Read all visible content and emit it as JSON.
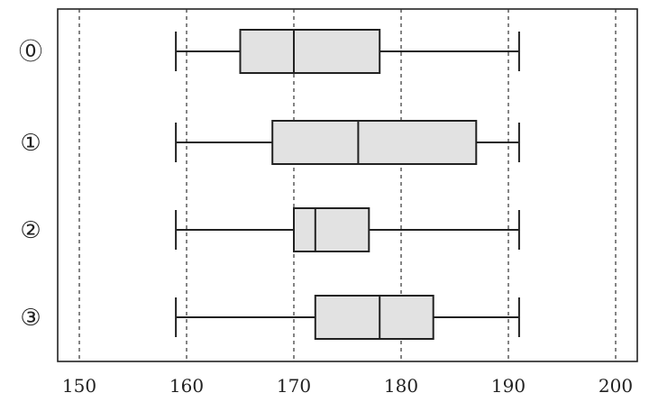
{
  "chart_data": {
    "type": "box",
    "orientation": "horizontal",
    "title": "",
    "xlabel": "",
    "ylabel": "",
    "xlim": [
      150,
      200
    ],
    "xticks": [
      150,
      160,
      170,
      180,
      190,
      200
    ],
    "grid": "vertical dashed",
    "categories": [
      "⓪",
      "①",
      "②",
      "③"
    ],
    "series": [
      {
        "label": "⓪",
        "min": 159,
        "q1": 165,
        "median": 170,
        "q3": 178,
        "max": 191
      },
      {
        "label": "①",
        "min": 159,
        "q1": 168,
        "median": 176,
        "q3": 187,
        "max": 191
      },
      {
        "label": "②",
        "min": 159,
        "q1": 170,
        "median": 172,
        "q3": 177,
        "max": 191
      },
      {
        "label": "③",
        "min": 159,
        "q1": 172,
        "median": 178,
        "q3": 183,
        "max": 191
      }
    ],
    "box_color": "#e2e2e2",
    "line_color": "#222222"
  }
}
